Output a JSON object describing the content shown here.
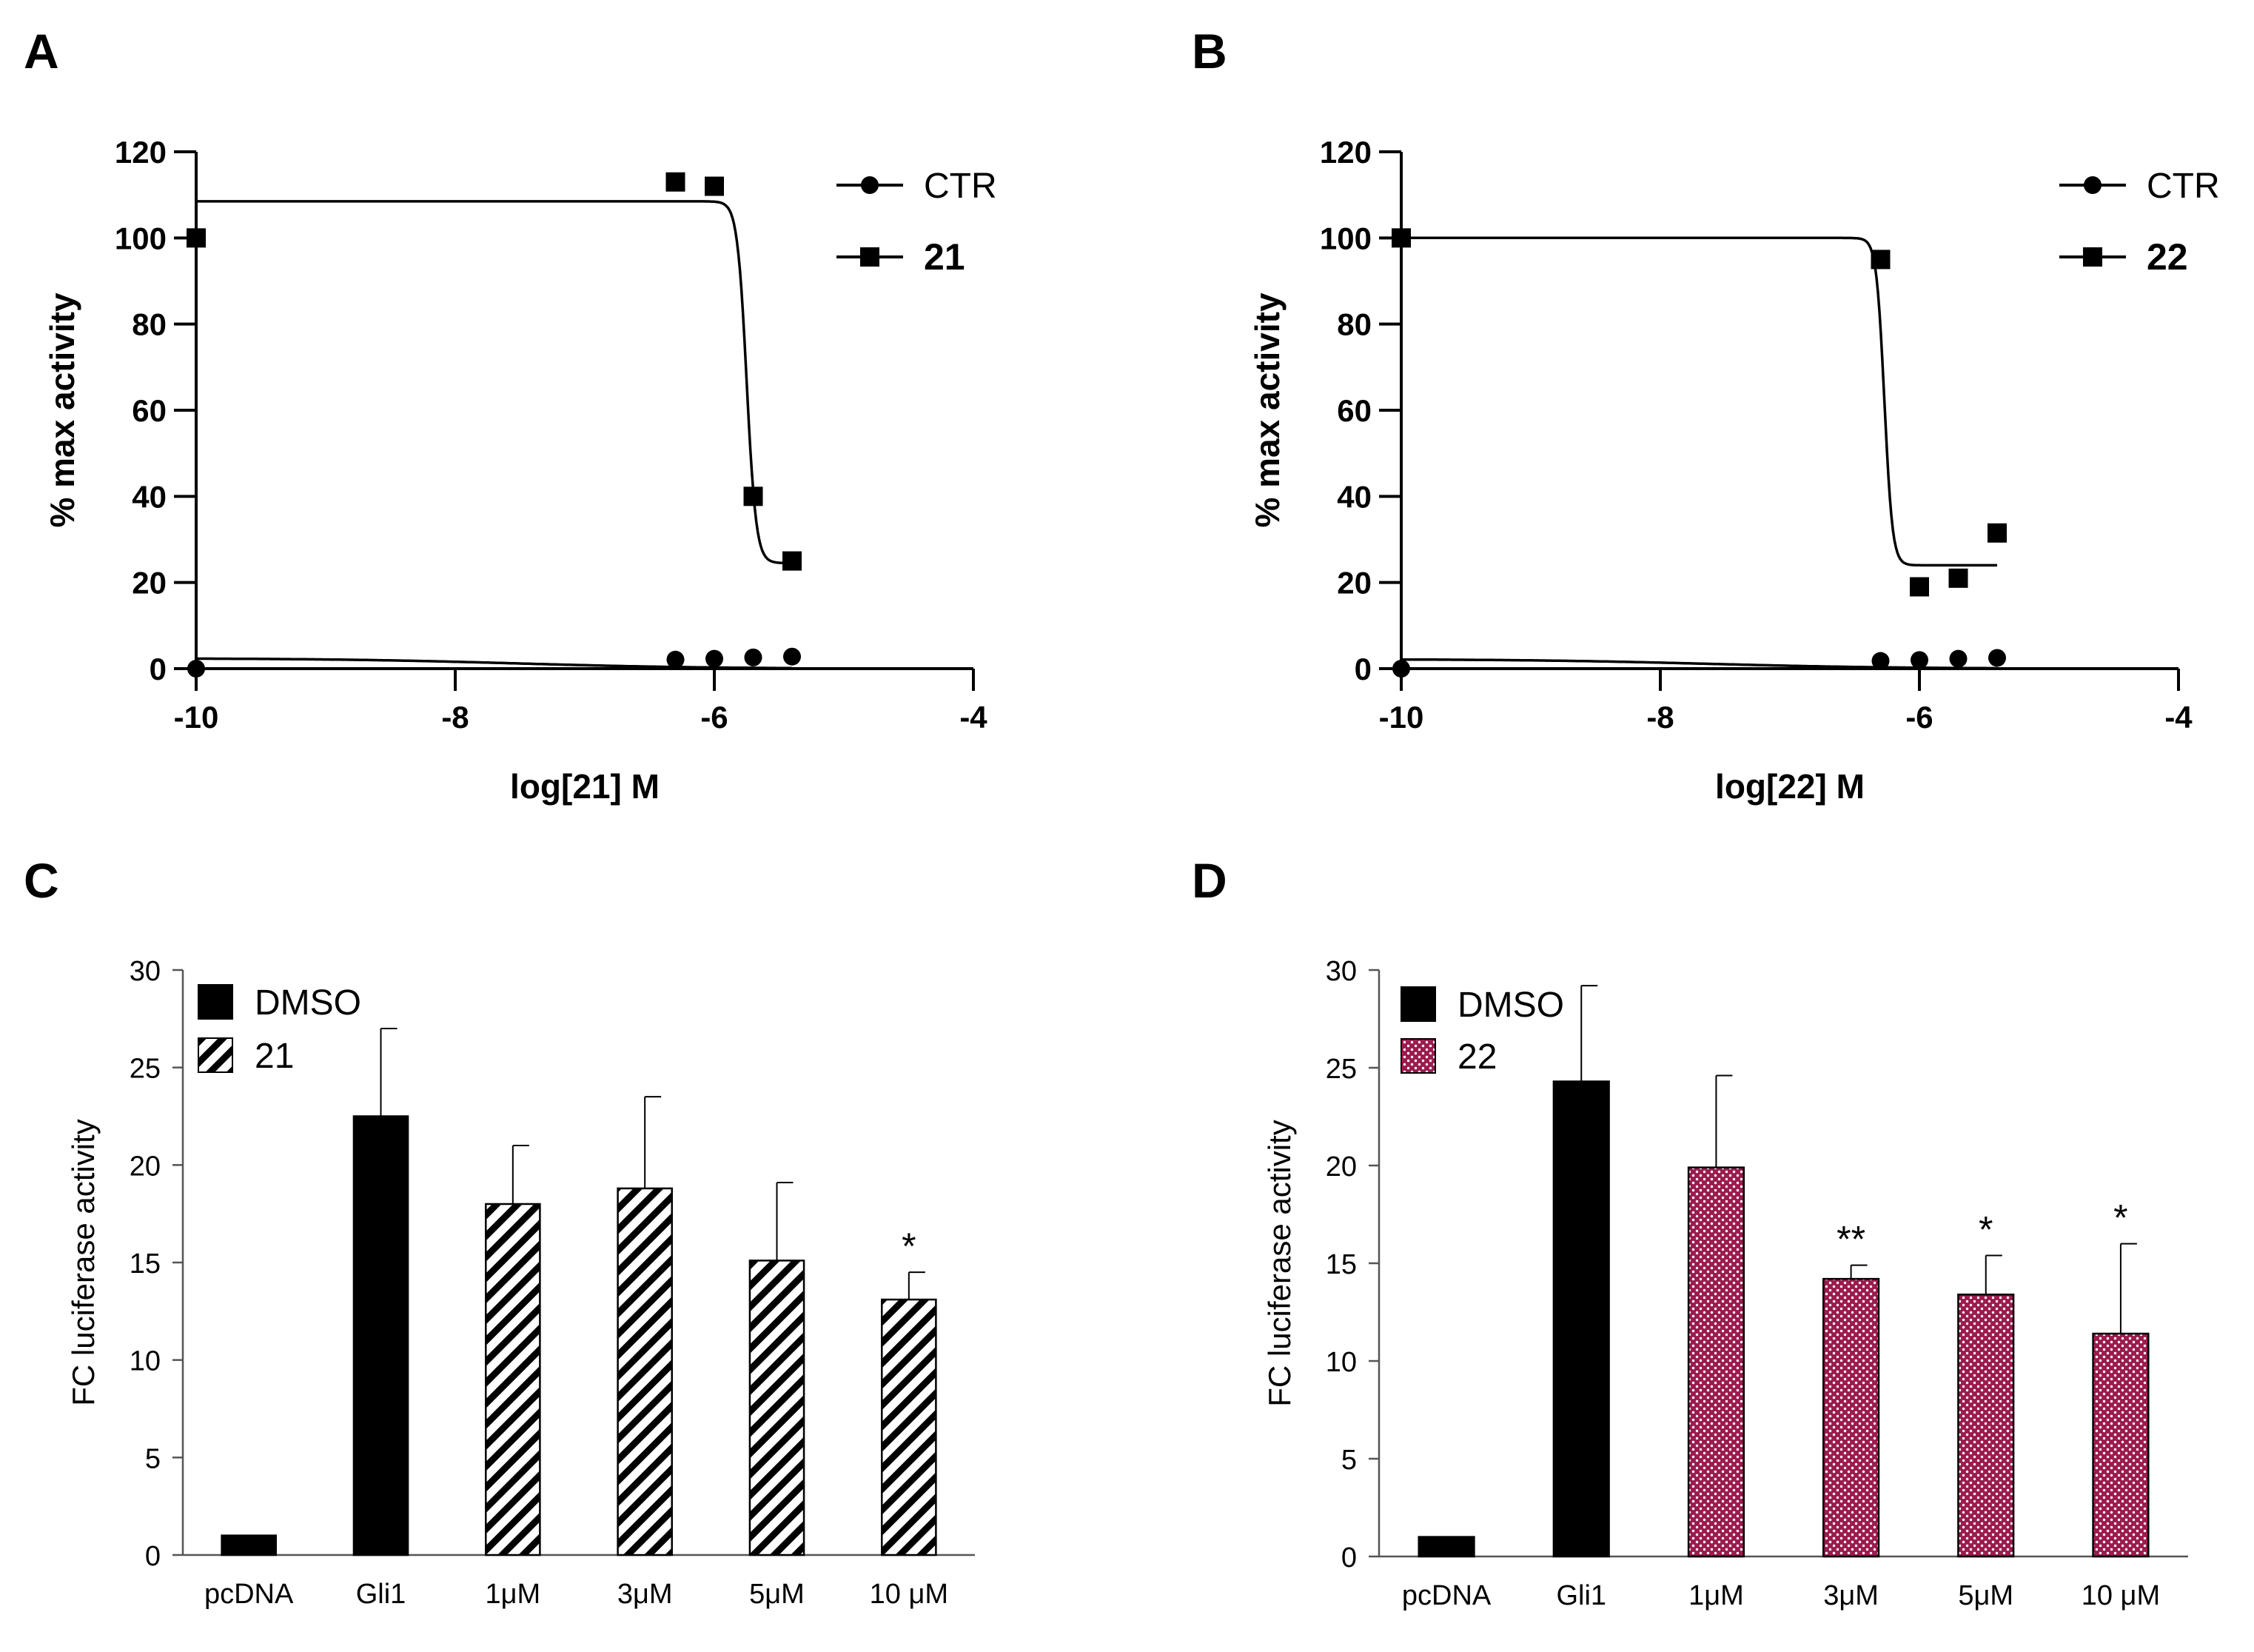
{
  "panels": [
    {
      "letter": "A"
    },
    {
      "letter": "B"
    },
    {
      "letter": "C"
    },
    {
      "letter": "D"
    }
  ],
  "colors": {
    "ink": "#000000",
    "crimson": "#9b1b4f"
  },
  "chart_data": [
    {
      "type": "line",
      "panel": "A",
      "xlabel": "log[21] M",
      "ylabel": "% max activity",
      "xlim": [
        -10,
        -4
      ],
      "ylim": [
        0,
        120
      ],
      "xticks": [
        -10,
        -8,
        -6,
        -4
      ],
      "yticks": [
        0,
        20,
        40,
        60,
        80,
        100,
        120
      ],
      "legend": "top-right",
      "series": [
        {
          "name": "CTR",
          "marker": "circle",
          "points": [
            [
              -10,
              0
            ],
            [
              -6.3,
              2.1
            ],
            [
              -6.0,
              2.3
            ],
            [
              -5.7,
              2.6
            ],
            [
              -5.4,
              2.8
            ]
          ],
          "fit": {
            "model": "sigmoid",
            "top": 2.4,
            "bottom": 0,
            "logEC50": -7.5,
            "slope": 0.6,
            "range": [
              -10,
              -5.4
            ]
          }
        },
        {
          "name": "21",
          "marker": "square",
          "points": [
            [
              -10,
              100
            ],
            [
              -6.3,
              113
            ],
            [
              -6.0,
              112
            ],
            [
              -5.7,
              40
            ],
            [
              -5.4,
              25
            ]
          ],
          "fit": {
            "model": "sigmoid",
            "top": 108.5,
            "bottom": 24.5,
            "logEC50": -5.75,
            "slope": 12,
            "range": [
              -10,
              -5.4
            ]
          }
        }
      ]
    },
    {
      "type": "line",
      "panel": "B",
      "xlabel": "log[22] M",
      "ylabel": "% max activity",
      "xlim": [
        -10,
        -4
      ],
      "ylim": [
        0,
        120
      ],
      "xticks": [
        -10,
        -8,
        -6,
        -4
      ],
      "yticks": [
        0,
        20,
        40,
        60,
        80,
        100,
        120
      ],
      "legend": "top-right",
      "series": [
        {
          "name": "CTR",
          "marker": "circle",
          "points": [
            [
              -10,
              0
            ],
            [
              -6.3,
              1.8
            ],
            [
              -6.0,
              2.0
            ],
            [
              -5.7,
              2.3
            ],
            [
              -5.4,
              2.5
            ]
          ],
          "fit": {
            "model": "sigmoid",
            "top": 2.2,
            "bottom": 0,
            "logEC50": -7.6,
            "slope": 0.6,
            "range": [
              -10,
              -5.4
            ]
          }
        },
        {
          "name": "22",
          "marker": "square",
          "points": [
            [
              -10,
              100
            ],
            [
              -6.3,
              95
            ],
            [
              -6.0,
              19
            ],
            [
              -5.7,
              21
            ],
            [
              -5.4,
              31.5
            ]
          ],
          "fit": {
            "model": "sigmoid",
            "top": 100,
            "bottom": 24,
            "logEC50": -6.27,
            "slope": 14,
            "range": [
              -10,
              -5.4
            ]
          }
        }
      ]
    },
    {
      "type": "bar",
      "panel": "C",
      "ylabel": "FC  luciferase activity",
      "ylim": [
        0,
        30
      ],
      "yticks": [
        0,
        5,
        10,
        15,
        20,
        25,
        30
      ],
      "legend": "top-left",
      "legend_items": [
        {
          "label": "DMSO",
          "fill": "black"
        },
        {
          "label": "21",
          "fill": "hatch"
        }
      ],
      "categories": [
        "pcDNA",
        "Gli1",
        "1μM",
        "3μM",
        "5μM",
        "10 μM"
      ],
      "values": [
        1.0,
        22.5,
        18.0,
        18.8,
        15.1,
        13.1
      ],
      "errors": [
        0,
        4.5,
        3.0,
        4.7,
        4.0,
        1.4
      ],
      "fills": [
        "black",
        "black",
        "hatch",
        "hatch",
        "hatch",
        "hatch"
      ],
      "significance": [
        "",
        "",
        "",
        "",
        "",
        "*"
      ]
    },
    {
      "type": "bar",
      "panel": "D",
      "ylabel": "FC  luciferase activity",
      "ylim": [
        0,
        30
      ],
      "yticks": [
        0,
        5,
        10,
        15,
        20,
        25,
        30
      ],
      "legend": "top-left",
      "legend_items": [
        {
          "label": "DMSO",
          "fill": "black"
        },
        {
          "label": "22",
          "fill": "dots"
        }
      ],
      "categories": [
        "pcDNA",
        "Gli1",
        "1μM",
        "3μM",
        "5μM",
        "10 μM"
      ],
      "values": [
        1.0,
        24.3,
        19.9,
        14.2,
        13.4,
        11.4
      ],
      "errors": [
        0,
        4.9,
        4.7,
        0.7,
        2.0,
        4.6
      ],
      "fills": [
        "black",
        "black",
        "dots",
        "dots",
        "dots",
        "dots"
      ],
      "significance": [
        "",
        "",
        "",
        "**",
        "*",
        "*"
      ]
    }
  ]
}
